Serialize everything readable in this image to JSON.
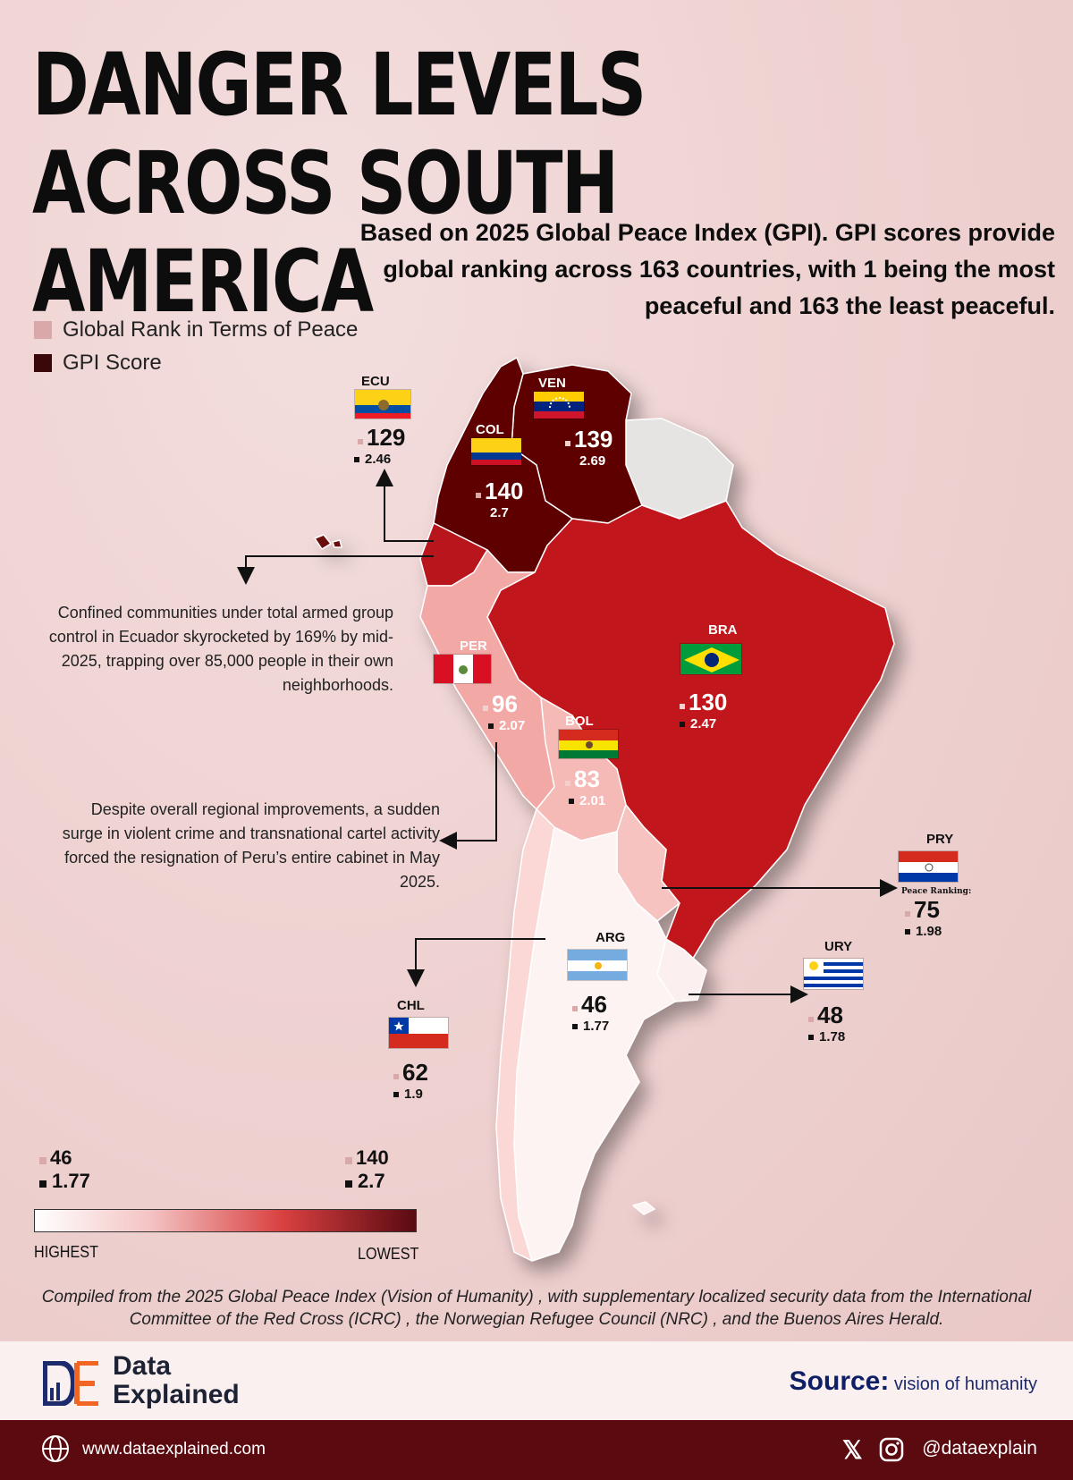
{
  "title": "DANGER LEVELS ACROSS SOUTH AMERICA",
  "subtitle": "Based on 2025 Global Peace Index (GPI). GPI scores provide global ranking across 163 countries, with 1 being the most peaceful and 163 the least peaceful.",
  "legend": {
    "rank_label": "Global Rank in Terms of Peace",
    "score_label": "GPI Score",
    "rank_color": "#d9a9a9",
    "score_color": "#3a0808"
  },
  "countries": {
    "ecu": {
      "code": "ECU",
      "rank": "129",
      "score": "2.46",
      "color": "#b8121f"
    },
    "col": {
      "code": "COL",
      "rank": "140",
      "score": "2.7",
      "color": "#5e0006"
    },
    "ven": {
      "code": "VEN",
      "rank": "139",
      "score": "2.69",
      "color": "#5e0006"
    },
    "bra": {
      "code": "BRA",
      "rank": "130",
      "score": "2.47",
      "color": "#c0121f"
    },
    "per": {
      "code": "PER",
      "rank": "96",
      "score": "2.07",
      "color": "#f2a9a6"
    },
    "bol": {
      "code": "BOL",
      "rank": "83",
      "score": "2.01",
      "color": "#f5b9b6"
    },
    "pry": {
      "code": "PRY",
      "rank": "75",
      "score": "1.98",
      "rank_prefix": "Peace Ranking:",
      "color": "#f6c3c0"
    },
    "arg": {
      "code": "ARG",
      "rank": "46",
      "score": "1.77",
      "color": "#fdf3f2"
    },
    "ury": {
      "code": "URY",
      "rank": "48",
      "score": "1.78",
      "color": "#fbf0ef"
    },
    "chl": {
      "code": "CHL",
      "rank": "62",
      "score": "1.9",
      "color": "#fbd8d6"
    }
  },
  "notes": {
    "ecuador": "Confined communities under total armed group control in Ecuador skyrocketed by 169% by mid-2025, trapping over 85,000 people in their own neighborhoods.",
    "peru": "Despite overall regional improvements, a sudden surge in violent crime and transnational cartel activity forced the resignation of Peru’s entire cabinet in May 2025."
  },
  "scale": {
    "low_rank": "46",
    "low_score": "1.77",
    "high_rank": "140",
    "high_score": "2.7",
    "left_label": "HIGHEST",
    "right_label": "LOWEST"
  },
  "footnote": "Compiled from the 2025 Global Peace Index (Vision of Humanity) , with supplementary localized security data from the International Committee of the Red Cross (ICRC) , the Norwegian Refugee Council (NRC) , and the Buenos Aires Herald.",
  "brand": {
    "logo_letters": "DE",
    "name_line1": "Data",
    "name_line2": "Explained",
    "source_label": "Source:",
    "source_value": "vision of humanity",
    "website": "www.dataexplained.com",
    "handle": "@dataexplain",
    "x_icon_glyph": "𝕏"
  }
}
